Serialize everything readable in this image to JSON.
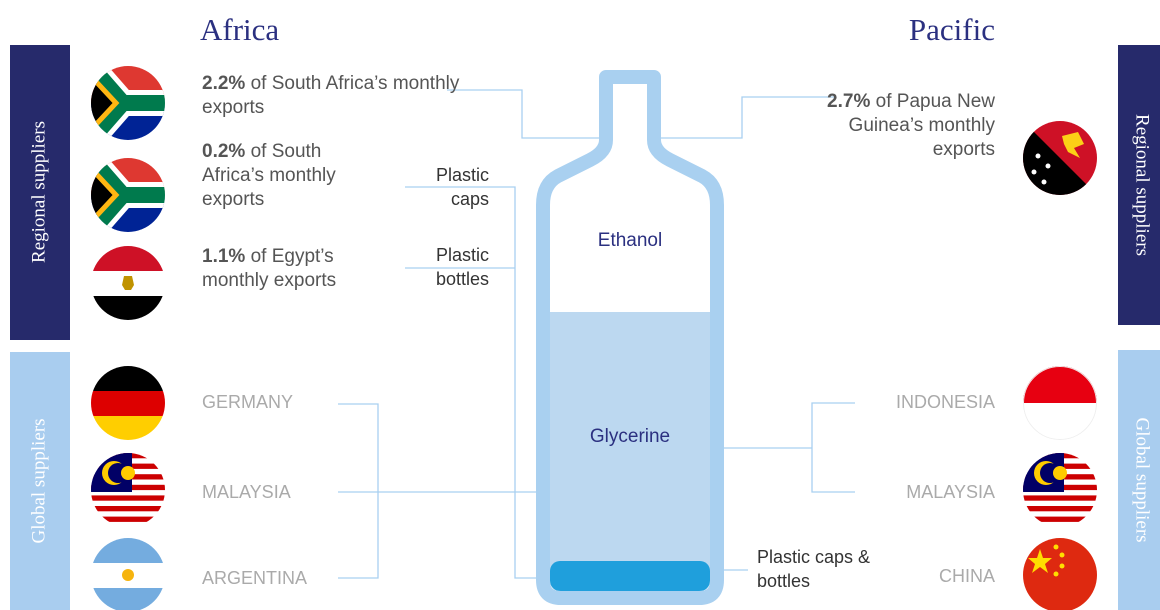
{
  "regions": {
    "left": "Africa",
    "right": "Pacific"
  },
  "bands": {
    "regional": "Regional suppliers",
    "global": "Global suppliers"
  },
  "regional_suppliers": [
    {
      "share": "2.2%",
      "text": "of South Africa’s monthly exports"
    },
    {
      "share": "0.2%",
      "text": "of South Africa’s monthly exports"
    },
    {
      "share": "1.1%",
      "text": "of Egypt’s monthly exports"
    },
    {
      "share": "2.7%",
      "text": "of Papua New Guinea’s monthly exports"
    }
  ],
  "global_suppliers": {
    "left": [
      "GERMANY",
      "MALAYSIA",
      "ARGENTINA"
    ],
    "right": [
      "INDONESIA",
      "MALAYSIA",
      "CHINA"
    ]
  },
  "materials": {
    "caps": "Plastic caps",
    "bottles": "Plastic bottles",
    "caps_and_bottles": "Plastic caps & bottles"
  },
  "bottle": {
    "top": "Ethanol",
    "bottom": "Glycerine"
  }
}
